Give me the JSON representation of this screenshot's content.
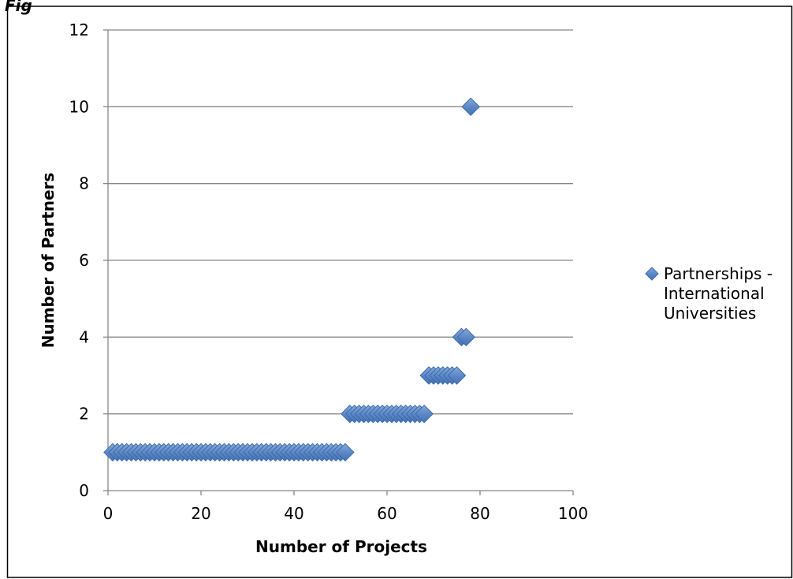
{
  "chart_data": {
    "type": "scatter",
    "title": "",
    "xlabel": "Number of Projects",
    "ylabel": "Number of Partners",
    "xlim": [
      0,
      100
    ],
    "ylim": [
      0,
      12
    ],
    "x_ticks": [
      0,
      20,
      40,
      60,
      80,
      100
    ],
    "y_ticks": [
      0,
      2,
      4,
      6,
      8,
      10,
      12
    ],
    "grid": "horizontal",
    "legend_position": "right",
    "series": [
      {
        "name": "Partnerships - International Universities",
        "name_lines": [
          "Partnerships -",
          "International",
          "Universities"
        ],
        "color": "#4F81BD",
        "marker": "diamond",
        "points": [
          [
            1,
            1
          ],
          [
            2,
            1
          ],
          [
            3,
            1
          ],
          [
            4,
            1
          ],
          [
            5,
            1
          ],
          [
            6,
            1
          ],
          [
            7,
            1
          ],
          [
            8,
            1
          ],
          [
            9,
            1
          ],
          [
            10,
            1
          ],
          [
            11,
            1
          ],
          [
            12,
            1
          ],
          [
            13,
            1
          ],
          [
            14,
            1
          ],
          [
            15,
            1
          ],
          [
            16,
            1
          ],
          [
            17,
            1
          ],
          [
            18,
            1
          ],
          [
            19,
            1
          ],
          [
            20,
            1
          ],
          [
            21,
            1
          ],
          [
            22,
            1
          ],
          [
            23,
            1
          ],
          [
            24,
            1
          ],
          [
            25,
            1
          ],
          [
            26,
            1
          ],
          [
            27,
            1
          ],
          [
            28,
            1
          ],
          [
            29,
            1
          ],
          [
            30,
            1
          ],
          [
            31,
            1
          ],
          [
            32,
            1
          ],
          [
            33,
            1
          ],
          [
            34,
            1
          ],
          [
            35,
            1
          ],
          [
            36,
            1
          ],
          [
            37,
            1
          ],
          [
            38,
            1
          ],
          [
            39,
            1
          ],
          [
            40,
            1
          ],
          [
            41,
            1
          ],
          [
            42,
            1
          ],
          [
            43,
            1
          ],
          [
            44,
            1
          ],
          [
            45,
            1
          ],
          [
            46,
            1
          ],
          [
            47,
            1
          ],
          [
            48,
            1
          ],
          [
            49,
            1
          ],
          [
            50,
            1
          ],
          [
            51,
            1
          ],
          [
            52,
            2
          ],
          [
            53,
            2
          ],
          [
            54,
            2
          ],
          [
            55,
            2
          ],
          [
            56,
            2
          ],
          [
            57,
            2
          ],
          [
            58,
            2
          ],
          [
            59,
            2
          ],
          [
            60,
            2
          ],
          [
            61,
            2
          ],
          [
            62,
            2
          ],
          [
            63,
            2
          ],
          [
            64,
            2
          ],
          [
            65,
            2
          ],
          [
            66,
            2
          ],
          [
            67,
            2
          ],
          [
            68,
            2
          ],
          [
            69,
            3
          ],
          [
            70,
            3
          ],
          [
            71,
            3
          ],
          [
            72,
            3
          ],
          [
            73,
            3
          ],
          [
            74,
            3
          ],
          [
            75,
            3
          ],
          [
            76,
            4
          ],
          [
            77,
            4
          ],
          [
            78,
            10
          ]
        ]
      }
    ]
  },
  "caption": "Fig"
}
